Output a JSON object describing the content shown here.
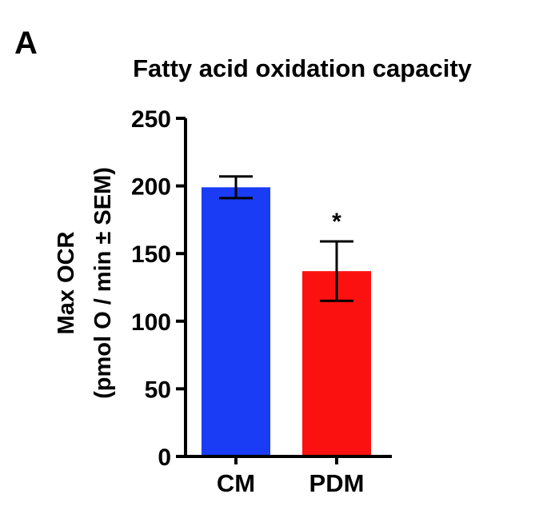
{
  "panel_label": "A",
  "chart_data": {
    "type": "bar",
    "title": "Fatty acid oxidation capacity",
    "ylabel_line1": "Max OCR",
    "ylabel_line2": "(pmol O / min ± SEM)",
    "xlabel": "",
    "categories": [
      "CM",
      "PDM"
    ],
    "values": [
      199,
      137
    ],
    "errors": [
      8,
      22
    ],
    "colors": [
      "#1a3cf5",
      "#fc1111"
    ],
    "significance": [
      "",
      "*"
    ],
    "ylim": [
      0,
      250
    ],
    "yticks": [
      0,
      50,
      100,
      150,
      200,
      250
    ],
    "grid": false,
    "legend": "none"
  }
}
